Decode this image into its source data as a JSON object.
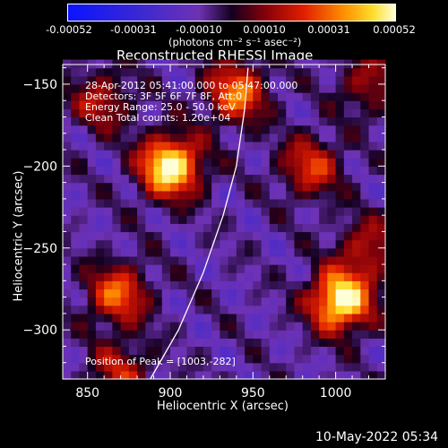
{
  "colorbar": {
    "ticks": [
      "-0.00052",
      "-0.00031",
      "-0.00010",
      "0.00010",
      "0.00031",
      "0.00052"
    ],
    "unit_label": "(photons cm⁻² s⁻¹ asec⁻²)"
  },
  "chart_data": {
    "type": "heatmap",
    "title": "Reconstructed RHESSI Image",
    "xlabel": "Heliocentric X (arcsec)",
    "ylabel": "Heliocentric Y (arcsec)",
    "xlim": [
      835,
      1030
    ],
    "ylim": [
      -330,
      -138
    ],
    "x_ticks": [
      850,
      900,
      950,
      1000
    ],
    "x_tick_labels": [
      "850",
      "900",
      "950",
      "1000"
    ],
    "y_ticks": [
      -150,
      -200,
      -250,
      -300
    ],
    "y_tick_labels": [
      "-150",
      "-200",
      "-250",
      "-300"
    ],
    "annotations": {
      "time_range": "28-Apr-2012 05:41:00.000 to 05:47:00.000",
      "detectors": "Detectors: 3F 5F 6F 7F 8F, Att:0",
      "energy": "Energy Range: 25.0 - 50.0 keV",
      "clean": "Clean    Total counts: 1.20e+04",
      "peak": "Position of Peak = [1003,-282]"
    },
    "sources": [
      {
        "x": 900,
        "y": -200,
        "intensity": 1.0
      },
      {
        "x": 1003,
        "y": -282,
        "intensity": 1.0
      },
      {
        "x": 868,
        "y": -278,
        "intensity": 0.6
      },
      {
        "x": 940,
        "y": -155,
        "intensity": 0.65
      },
      {
        "x": 858,
        "y": -160,
        "intensity": 0.4
      },
      {
        "x": 1020,
        "y": -150,
        "intensity": 0.35
      },
      {
        "x": 870,
        "y": -325,
        "intensity": 0.4
      },
      {
        "x": 985,
        "y": -200,
        "intensity": 0.5
      },
      {
        "x": 1020,
        "y": -250,
        "intensity": 0.4
      }
    ],
    "limb_curve": [
      [
        888,
        -330
      ],
      [
        905,
        -300
      ],
      [
        920,
        -265
      ],
      [
        932,
        -230
      ],
      [
        940,
        -200
      ],
      [
        945,
        -165
      ],
      [
        947,
        -140
      ]
    ]
  },
  "footer": {
    "timestamp": "10-May-2022 05:34"
  }
}
